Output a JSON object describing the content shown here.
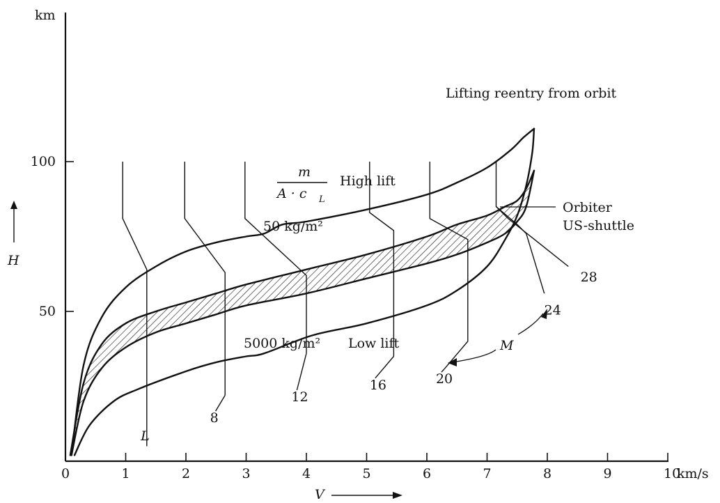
{
  "chart_data": {
    "type": "line",
    "title": "Lifting reentry from orbit",
    "xlabel": "V",
    "ylabel": "H",
    "x_unit": "km/s",
    "y_unit": "km",
    "xlim": [
      0,
      10
    ],
    "ylim": [
      0,
      135
    ],
    "x_ticks": [
      "0",
      "1",
      "2",
      "3",
      "4",
      "5",
      "6",
      "7",
      "8",
      "9",
      "10"
    ],
    "y_ticks": [
      {
        "value": 50,
        "label": "50"
      },
      {
        "value": 100,
        "label": "100"
      }
    ],
    "grid": false,
    "series": [
      {
        "name": "50 kg/m² (High lift)",
        "role": "upper",
        "points": [
          [
            0.1,
            2
          ],
          [
            0.3,
            32
          ],
          [
            0.6,
            48
          ],
          [
            1.0,
            58
          ],
          [
            1.5,
            65
          ],
          [
            2.0,
            70
          ],
          [
            2.5,
            73
          ],
          [
            3.0,
            75
          ],
          [
            3.3,
            76
          ],
          [
            3.6,
            79
          ],
          [
            4.0,
            80
          ],
          [
            5.0,
            84
          ],
          [
            6.0,
            89
          ],
          [
            6.5,
            93
          ],
          [
            7.0,
            98
          ],
          [
            7.4,
            104
          ],
          [
            7.6,
            108
          ],
          [
            7.78,
            111
          ]
        ]
      },
      {
        "name": "Orbiter US-shuttle (upper)",
        "role": "band-top",
        "points": [
          [
            0.08,
            2
          ],
          [
            0.3,
            26
          ],
          [
            0.6,
            39
          ],
          [
            1.0,
            46
          ],
          [
            1.5,
            50
          ],
          [
            2.0,
            53
          ],
          [
            2.5,
            56
          ],
          [
            3.0,
            59
          ],
          [
            4.0,
            64
          ],
          [
            5.0,
            69
          ],
          [
            6.0,
            75
          ],
          [
            6.5,
            79
          ],
          [
            7.0,
            82
          ],
          [
            7.3,
            85
          ],
          [
            7.5,
            87
          ],
          [
            7.65,
            91
          ],
          [
            7.78,
            97
          ]
        ]
      },
      {
        "name": "Orbiter US-shuttle (lower)",
        "role": "band-bottom",
        "points": [
          [
            0.1,
            2
          ],
          [
            0.3,
            20
          ],
          [
            0.6,
            31
          ],
          [
            1.0,
            38
          ],
          [
            1.5,
            43
          ],
          [
            2.0,
            46
          ],
          [
            2.5,
            49
          ],
          [
            3.0,
            52
          ],
          [
            4.0,
            56
          ],
          [
            5.0,
            61
          ],
          [
            6.0,
            66
          ],
          [
            6.5,
            69
          ],
          [
            7.0,
            73
          ],
          [
            7.3,
            76
          ],
          [
            7.5,
            80
          ],
          [
            7.65,
            85
          ],
          [
            7.78,
            97
          ]
        ]
      },
      {
        "name": "5000 kg/m² (Low lift)",
        "role": "lower",
        "points": [
          [
            0.15,
            2
          ],
          [
            0.4,
            12
          ],
          [
            0.8,
            20
          ],
          [
            1.2,
            24
          ],
          [
            2.0,
            30
          ],
          [
            2.5,
            33
          ],
          [
            3.0,
            35
          ],
          [
            3.3,
            36
          ],
          [
            4.1,
            42
          ],
          [
            5.0,
            46
          ],
          [
            6.0,
            52
          ],
          [
            6.5,
            57
          ],
          [
            7.0,
            65
          ],
          [
            7.3,
            74
          ],
          [
            7.5,
            82
          ],
          [
            7.65,
            92
          ],
          [
            7.75,
            103
          ],
          [
            7.78,
            111
          ]
        ]
      }
    ],
    "mach_lines": [
      {
        "label": "L",
        "points": [
          [
            0.95,
            100
          ],
          [
            0.95,
            81
          ],
          [
            1.35,
            64
          ],
          [
            1.35,
            50
          ],
          [
            1.35,
            5
          ]
        ],
        "label_pos": [
          1.25,
          7
        ]
      },
      {
        "label": "8",
        "points": [
          [
            1.98,
            100
          ],
          [
            1.98,
            81
          ],
          [
            2.65,
            63
          ],
          [
            2.65,
            50
          ],
          [
            2.65,
            22
          ]
        ],
        "label_pos": [
          2.4,
          13
        ]
      },
      {
        "label": "12",
        "points": [
          [
            2.98,
            100
          ],
          [
            2.98,
            81
          ],
          [
            4.0,
            62
          ],
          [
            4.0,
            48
          ],
          [
            4.0,
            36
          ]
        ],
        "label_pos": [
          3.75,
          20
        ]
      },
      {
        "label": "16",
        "points": [
          [
            5.05,
            100
          ],
          [
            5.05,
            83
          ],
          [
            5.45,
            77
          ],
          [
            5.45,
            70
          ],
          [
            5.45,
            60
          ],
          [
            5.45,
            47
          ],
          [
            5.45,
            35
          ]
        ],
        "label_pos": [
          5.05,
          24
        ]
      },
      {
        "label": "20",
        "points": [
          [
            6.05,
            100
          ],
          [
            6.05,
            81
          ],
          [
            6.68,
            74
          ],
          [
            6.68,
            60
          ],
          [
            6.68,
            48
          ],
          [
            6.68,
            40
          ],
          [
            6.3,
            31
          ]
        ],
        "label_pos": [
          6.15,
          26
        ]
      },
      {
        "label": "24",
        "points": [
          [
            7.15,
            100
          ],
          [
            7.15,
            85
          ],
          [
            7.5,
            79
          ],
          [
            7.65,
            76
          ],
          [
            7.95,
            56
          ]
        ],
        "label_pos": [
          7.95,
          49
        ]
      },
      {
        "label": "28",
        "points": [
          [
            7.15,
            85
          ],
          [
            7.35,
            81
          ],
          [
            8.35,
            65
          ]
        ],
        "label_pos": [
          8.55,
          60
        ]
      }
    ],
    "annotations": {
      "title": "Lifting reentry from orbit",
      "ratio_numerator": "m",
      "ratio_denominator": "A · c",
      "ratio_subscript": "L",
      "high_lift": "High lift",
      "low_lift": "Low lift",
      "upper_ballistic": "50 kg/m²",
      "lower_ballistic": "5000 kg/m²",
      "orbiter_line1": "Orbiter",
      "orbiter_line2": "US-shuttle",
      "mach_symbol": "M"
    },
    "colors": {
      "ink": "#111111",
      "background": "#ffffff"
    }
  }
}
